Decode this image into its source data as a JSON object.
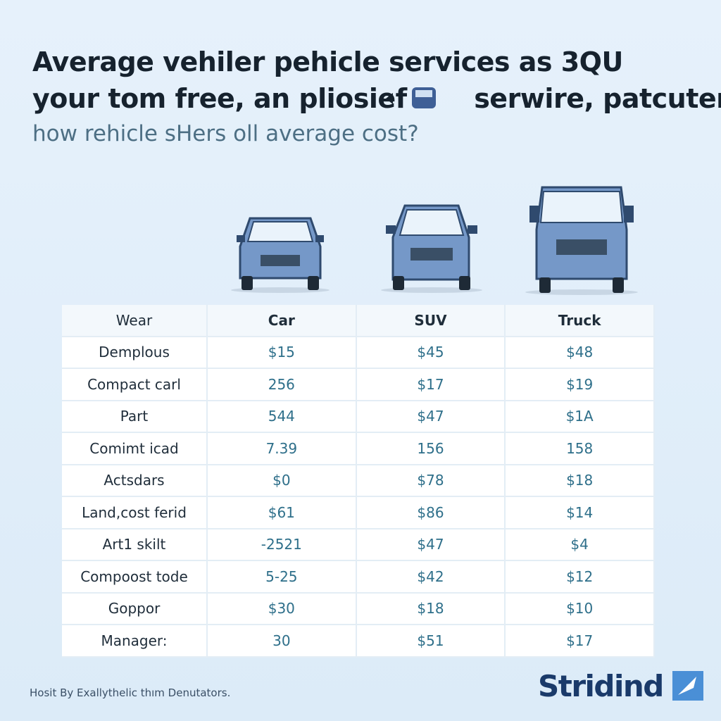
{
  "header": {
    "title_lines": [
      "Average vehiler pehicle services as 3QU",
      "your tom free, an pliosief",
      "serwire, patcuter"
    ],
    "subtitle": "how rehicle sHers oll average cost?"
  },
  "table": {
    "columns": [
      "Wear",
      "Car",
      "SUV",
      "Truck"
    ],
    "rows": [
      [
        "Demplous",
        "$15",
        "$45",
        "$48"
      ],
      [
        "Compact carl",
        "256",
        "$17",
        "$19"
      ],
      [
        "Part",
        "544",
        "$47",
        "$1A"
      ],
      [
        "Comimt icad",
        "7.39",
        "156",
        "158"
      ],
      [
        "Actsdars",
        "$0",
        "$78",
        "$18"
      ],
      [
        "Land,cost ferid",
        "$61",
        "$86",
        "$14"
      ],
      [
        "Art1 skilt",
        "-2521",
        "$47",
        "$4"
      ],
      [
        "Compoost tode",
        "5-25",
        "$42",
        "$12"
      ],
      [
        "Goppor",
        "$30",
        "$18",
        "$10"
      ],
      [
        "Manager:",
        "30",
        "$51",
        "$17"
      ]
    ]
  },
  "footer": {
    "note": "Hosit By Exallythelic thım Denutators.",
    "brand": "Stridind"
  }
}
